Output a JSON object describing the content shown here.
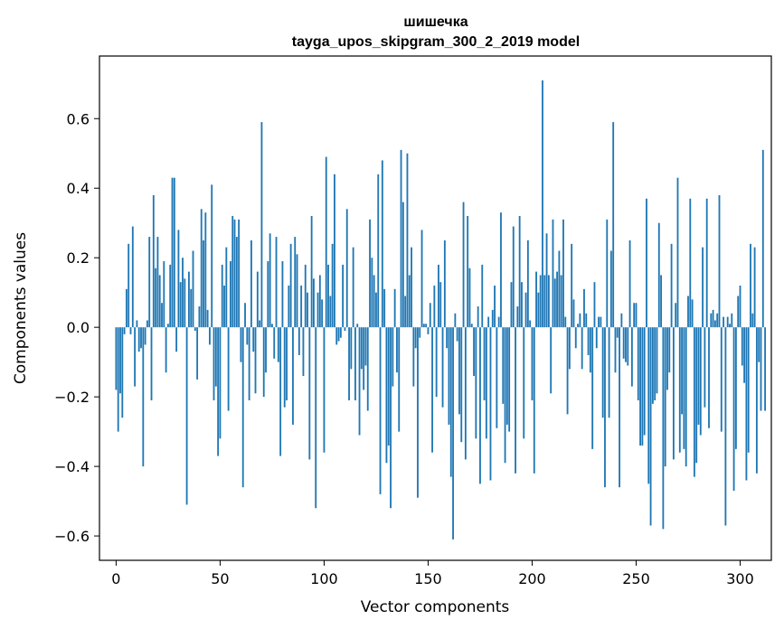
{
  "chart_data": {
    "type": "bar",
    "title_line1": "шишечка",
    "title_line2": "tayga_upos_skipgram_300_2_2019 model",
    "xlabel": "Vector components",
    "ylabel": "Components values",
    "xlim": [
      -8,
      315
    ],
    "ylim": [
      -0.67,
      0.78
    ],
    "xticks": [
      0,
      50,
      100,
      150,
      200,
      250,
      300
    ],
    "xtick_labels": [
      "0",
      "50",
      "100",
      "150",
      "200",
      "250",
      "300"
    ],
    "yticks": [
      -0.6,
      -0.4,
      -0.2,
      0.0,
      0.2,
      0.4,
      0.6
    ],
    "ytick_labels": [
      "−0.6",
      "−0.4",
      "−0.2",
      "0.0",
      "0.2",
      "0.4",
      "0.6"
    ],
    "bar_color": "#1f77b4",
    "values": [
      -0.18,
      -0.3,
      -0.19,
      -0.26,
      -0.02,
      0.11,
      0.24,
      -0.02,
      0.29,
      -0.17,
      0.02,
      -0.07,
      -0.06,
      -0.4,
      -0.05,
      0.02,
      0.26,
      -0.21,
      0.38,
      0.17,
      0.26,
      0.15,
      0.07,
      0.19,
      -0.13,
      0.01,
      0.18,
      0.43,
      0.43,
      -0.07,
      0.28,
      0.13,
      0.2,
      0.14,
      -0.51,
      0.16,
      0.11,
      0.22,
      -0.01,
      -0.15,
      0.06,
      0.34,
      0.25,
      0.33,
      0.05,
      -0.05,
      0.41,
      -0.21,
      -0.17,
      -0.37,
      -0.32,
      0.18,
      0.12,
      0.23,
      -0.24,
      0.19,
      0.32,
      0.31,
      0.26,
      0.31,
      -0.1,
      -0.46,
      0.07,
      -0.05,
      -0.21,
      0.25,
      -0.07,
      -0.19,
      0.16,
      0.02,
      0.59,
      -0.2,
      -0.13,
      0.19,
      0.27,
      0.01,
      -0.09,
      0.26,
      -0.1,
      -0.37,
      0.19,
      -0.23,
      -0.21,
      0.12,
      0.24,
      -0.28,
      0.26,
      0.21,
      -0.08,
      0.12,
      -0.14,
      0.18,
      0.1,
      -0.38,
      0.32,
      0.14,
      -0.52,
      0.1,
      0.15,
      0.08,
      -0.36,
      0.49,
      0.18,
      0.09,
      0.24,
      0.44,
      -0.05,
      -0.04,
      -0.03,
      0.18,
      -0.01,
      0.34,
      -0.21,
      -0.12,
      0.23,
      -0.21,
      0.01,
      -0.31,
      -0.12,
      -0.18,
      -0.11,
      -0.24,
      0.31,
      0.2,
      0.15,
      0.1,
      0.44,
      -0.48,
      0.48,
      0.11,
      -0.39,
      -0.34,
      -0.52,
      -0.17,
      0.11,
      -0.13,
      -0.3,
      0.51,
      0.36,
      0.09,
      0.5,
      0.15,
      0.23,
      -0.17,
      -0.06,
      -0.49,
      -0.03,
      0.28,
      0.01,
      0.01,
      -0.02,
      0.07,
      -0.36,
      0.12,
      -0.2,
      0.18,
      0.13,
      -0.23,
      0.25,
      -0.06,
      -0.28,
      -0.43,
      -0.61,
      0.04,
      -0.04,
      -0.25,
      -0.33,
      0.36,
      -0.38,
      0.32,
      0.17,
      0.01,
      -0.14,
      -0.32,
      0.06,
      -0.45,
      0.18,
      -0.21,
      -0.32,
      0.03,
      -0.44,
      0.05,
      0.12,
      -0.29,
      0.03,
      0.33,
      -0.22,
      -0.39,
      -0.28,
      -0.3,
      0.13,
      0.29,
      -0.42,
      0.06,
      0.32,
      0.13,
      -0.32,
      0.1,
      0.25,
      0.02,
      -0.21,
      -0.42,
      0.16,
      0.1,
      0.15,
      0.71,
      0.15,
      0.27,
      0.15,
      -0.19,
      0.31,
      0.14,
      0.16,
      0.22,
      0.15,
      0.31,
      0.03,
      -0.25,
      -0.12,
      0.24,
      0.08,
      -0.06,
      0.01,
      0.04,
      -0.12,
      0.11,
      0.04,
      -0.08,
      -0.13,
      -0.35,
      0.13,
      -0.06,
      0.03,
      0.03,
      -0.26,
      -0.46,
      0.31,
      -0.26,
      0.22,
      0.59,
      -0.13,
      -0.03,
      -0.46,
      0.04,
      -0.09,
      -0.1,
      -0.11,
      0.25,
      -0.17,
      0.07,
      0.07,
      -0.21,
      -0.34,
      -0.34,
      -0.31,
      0.37,
      -0.45,
      -0.57,
      -0.22,
      -0.21,
      -0.19,
      0.3,
      0.15,
      -0.58,
      -0.4,
      -0.18,
      -0.13,
      0.24,
      -0.38,
      0.07,
      0.43,
      -0.36,
      -0.25,
      -0.35,
      -0.4,
      0.09,
      0.37,
      0.08,
      -0.43,
      -0.39,
      -0.28,
      -0.31,
      0.23,
      -0.23,
      0.37,
      -0.29,
      0.04,
      0.05,
      0.02,
      0.04,
      0.38,
      -0.3,
      0.03,
      -0.57,
      0.03,
      0.01,
      0.04,
      -0.47,
      -0.35,
      0.09,
      0.12,
      -0.11,
      -0.16,
      -0.44,
      -0.36,
      0.24,
      0.04,
      0.23,
      -0.42,
      -0.1,
      -0.24,
      0.51,
      -0.24
    ]
  }
}
